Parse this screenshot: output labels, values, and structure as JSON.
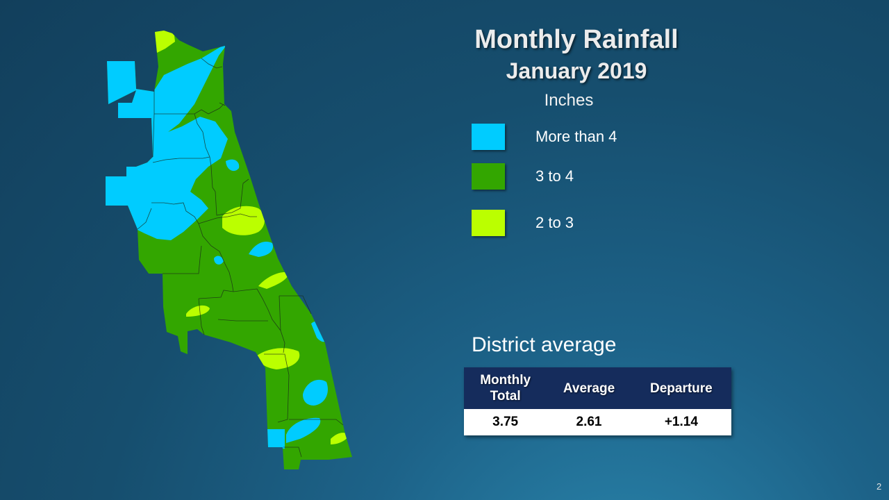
{
  "title": "Monthly Rainfall",
  "subtitle": "January 2019",
  "units": "Inches",
  "legend": [
    {
      "label": "More than 4",
      "color": "#00ccff"
    },
    {
      "label": "3 to 4",
      "color": "#33a600"
    },
    {
      "label": "2 to 3",
      "color": "#bbff00"
    }
  ],
  "district": {
    "heading": "District average",
    "headers": [
      "Monthly\nTotal",
      "Average",
      "Departure"
    ],
    "values": [
      "3.75",
      "2.61",
      "+1.14"
    ]
  },
  "page_number": "2"
}
